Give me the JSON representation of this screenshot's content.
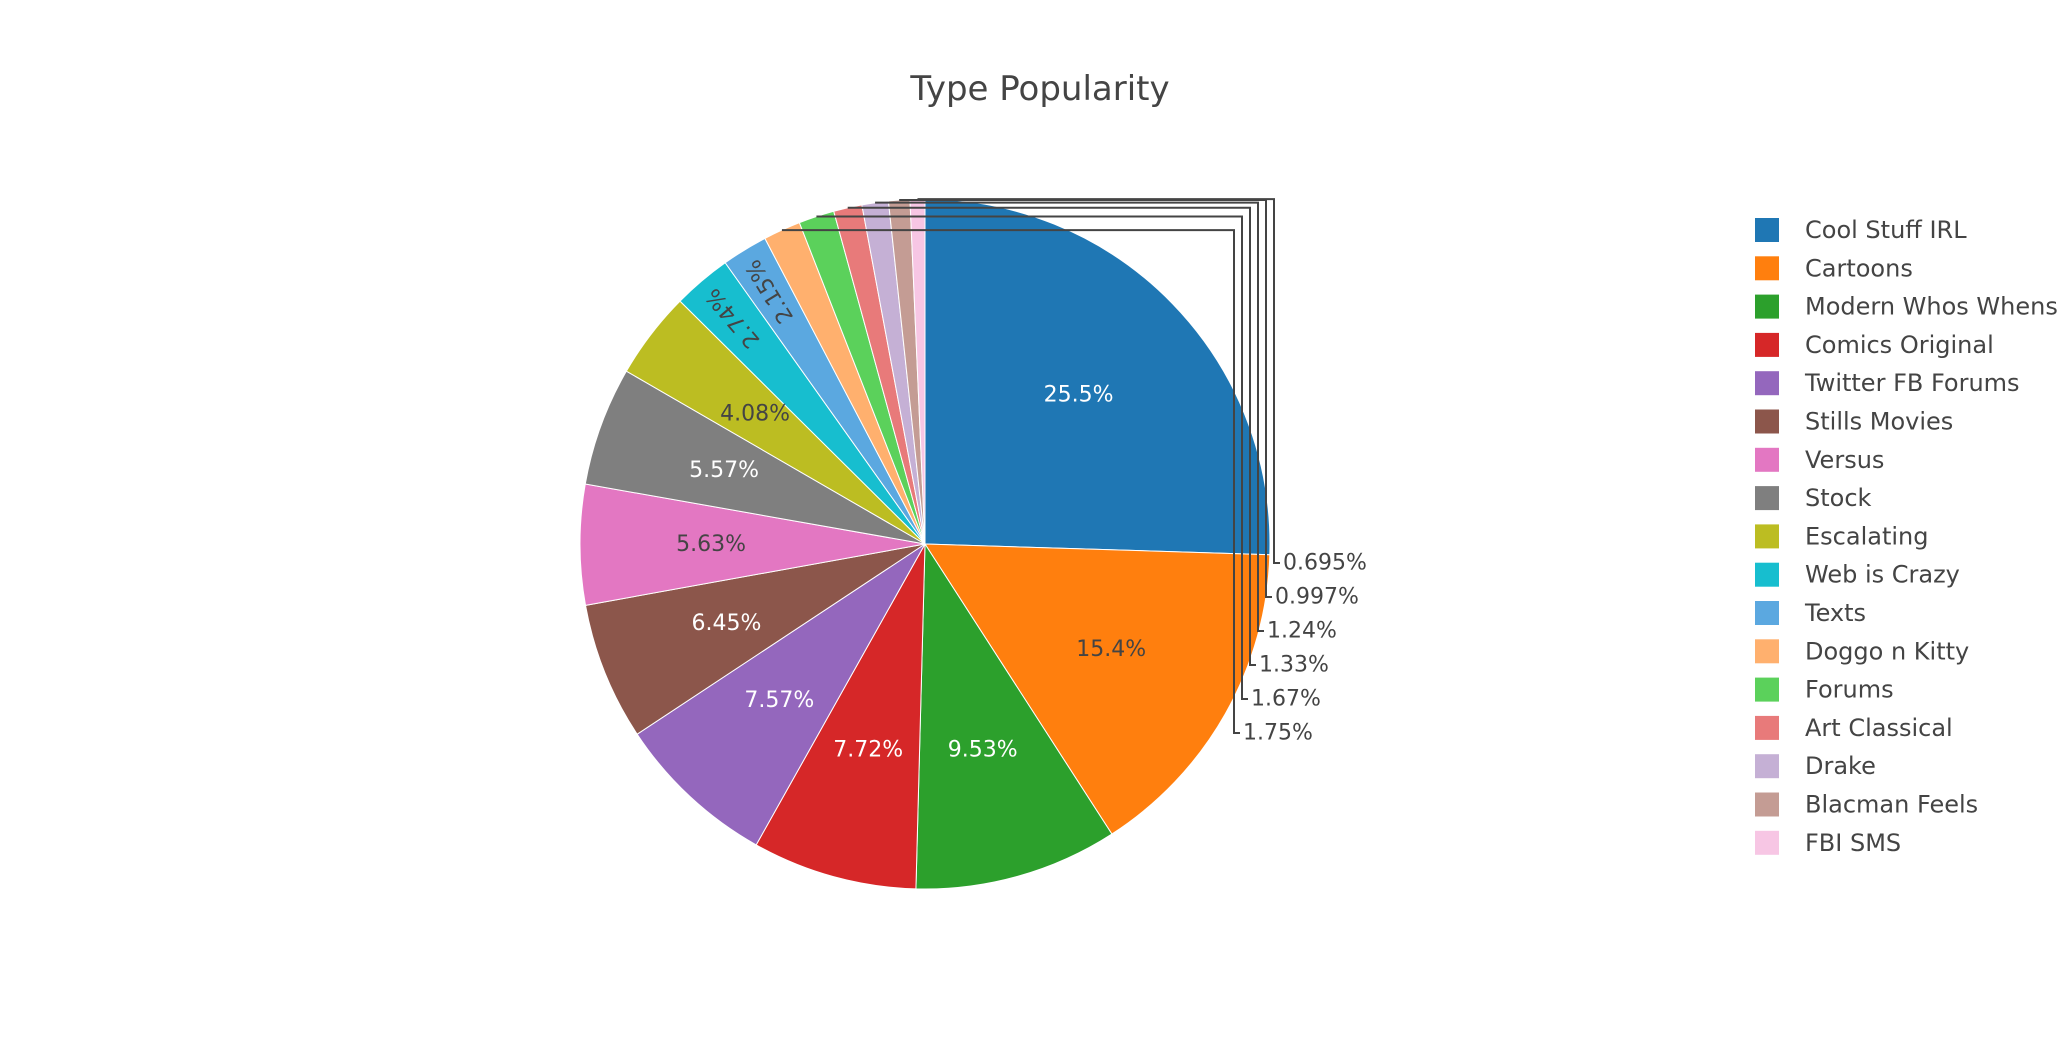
{
  "chart_data": {
    "type": "pie",
    "title": "Type Popularity",
    "direction": "clockwise",
    "start_angle_deg": 0,
    "legend_position": "right",
    "slices": [
      {
        "label": "Cool Stuff IRL",
        "percent": 25.5,
        "percent_label": "25.5%",
        "color": "#1f77b4",
        "label_color": "#ffffff",
        "label_placement": "inside"
      },
      {
        "label": "Cartoons",
        "percent": 15.4,
        "percent_label": "15.4%",
        "color": "#ff7f0e",
        "label_color": "#444444",
        "label_placement": "inside"
      },
      {
        "label": "Modern Whos Whens",
        "percent": 9.53,
        "percent_label": "9.53%",
        "color": "#2ca02c",
        "label_color": "#ffffff",
        "label_placement": "inside"
      },
      {
        "label": "Comics Original",
        "percent": 7.72,
        "percent_label": "7.72%",
        "color": "#d62728",
        "label_color": "#ffffff",
        "label_placement": "inside"
      },
      {
        "label": "Twitter FB Forums",
        "percent": 7.57,
        "percent_label": "7.57%",
        "color": "#9467bd",
        "label_color": "#ffffff",
        "label_placement": "inside"
      },
      {
        "label": "Stills Movies",
        "percent": 6.45,
        "percent_label": "6.45%",
        "color": "#8c564b",
        "label_color": "#ffffff",
        "label_placement": "inside"
      },
      {
        "label": "Versus",
        "percent": 5.63,
        "percent_label": "5.63%",
        "color": "#e377c2",
        "label_color": "#444444",
        "label_placement": "inside"
      },
      {
        "label": "Stock",
        "percent": 5.57,
        "percent_label": "5.57%",
        "color": "#7f7f7f",
        "label_color": "#ffffff",
        "label_placement": "inside"
      },
      {
        "label": "Escalating",
        "percent": 4.08,
        "percent_label": "4.08%",
        "color": "#bcbd22",
        "label_color": "#444444",
        "label_placement": "inside"
      },
      {
        "label": "Web is Crazy",
        "percent": 2.74,
        "percent_label": "2.74%",
        "color": "#17becf",
        "label_color": "#444444",
        "label_placement": "inside-rotated"
      },
      {
        "label": "Texts",
        "percent": 2.15,
        "percent_label": "2.15%",
        "color": "#5ba8e0",
        "label_color": "#444444",
        "label_placement": "inside-rotated"
      },
      {
        "label": "Doggo n Kitty",
        "percent": 1.75,
        "percent_label": "1.75%",
        "color": "#ffb06e",
        "label_color": "#444444",
        "label_placement": "outside"
      },
      {
        "label": "Forums",
        "percent": 1.67,
        "percent_label": "1.67%",
        "color": "#5bd15b",
        "label_color": "#444444",
        "label_placement": "outside"
      },
      {
        "label": "Art Classical",
        "percent": 1.33,
        "percent_label": "1.33%",
        "color": "#e87a7a",
        "label_color": "#444444",
        "label_placement": "outside"
      },
      {
        "label": "Drake",
        "percent": 1.24,
        "percent_label": "1.24%",
        "color": "#c5b0d5",
        "label_color": "#444444",
        "label_placement": "outside"
      },
      {
        "label": "Blacman Feels",
        "percent": 0.997,
        "percent_label": "0.997%",
        "color": "#c49c94",
        "label_color": "#444444",
        "label_placement": "outside"
      },
      {
        "label": "FBI SMS",
        "percent": 0.695,
        "percent_label": "0.695%",
        "color": "#f7c6e4",
        "label_color": "#444444",
        "label_placement": "outside"
      }
    ]
  }
}
